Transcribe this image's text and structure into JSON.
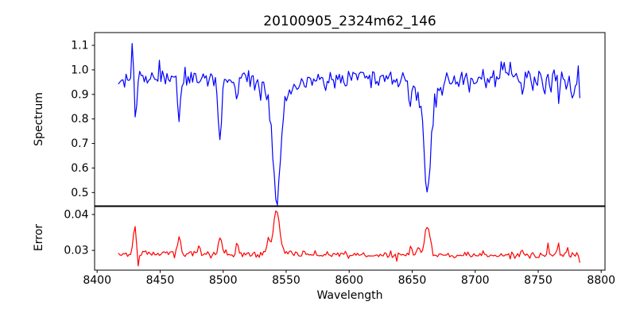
{
  "figure": {
    "background": "#ffffff",
    "axis_color": "#000000"
  },
  "chart_data": {
    "type": "line",
    "title": "20100905_2324m62_146",
    "xlabel": "Wavelength",
    "legend": false,
    "grid": false,
    "xlim": [
      8398,
      8803
    ],
    "x_ticks": [
      8400,
      8450,
      8500,
      8550,
      8600,
      8650,
      8700,
      8750,
      8800
    ],
    "x_tick_labels": [
      "8400",
      "8450",
      "8500",
      "8550",
      "8600",
      "8650",
      "8700",
      "8750",
      "8800"
    ],
    "x_data_start": 8417,
    "x_data_end": 8784,
    "x_step": 1.2,
    "panels": [
      {
        "name": "spectrum",
        "ylabel": "Spectrum",
        "line_color": "#0000ff",
        "ylim": [
          0.446,
          1.152
        ],
        "y_ticks": [
          0.5,
          0.6,
          0.7,
          0.8,
          0.9,
          1.0,
          1.1
        ],
        "y_tick_labels": [
          "0.5",
          "0.6",
          "0.7",
          "0.8",
          "0.9",
          "1.0",
          "1.1"
        ],
        "continuum": 0.965,
        "continuum_wiggle_amp": 0.006,
        "continuum_wiggle_period": 95,
        "noise_sigma": 0.021,
        "noise_seed": 42,
        "rough_zone_start": 8750,
        "rough_zone_factor": 1.45,
        "rough_zone_offset": -0.012,
        "absorption_lines": [
          [
            8430.5,
            0.2,
            1.0
          ],
          [
            8465.0,
            0.155,
            1.0
          ],
          [
            8497.5,
            0.27,
            1.4
          ],
          [
            8511.0,
            0.09,
            0.9
          ],
          [
            8542.5,
            0.37,
            2.8
          ],
          [
            8542.5,
            0.117,
            8.0
          ],
          [
            8581.0,
            0.06,
            0.8
          ],
          [
            8649.0,
            0.08,
            0.9
          ],
          [
            8662.0,
            0.36,
            2.4
          ],
          [
            8662.0,
            0.1,
            7.0
          ],
          [
            8695.0,
            0.07,
            0.9
          ],
          [
            8737.0,
            0.07,
            0.9
          ],
          [
            8766.0,
            0.08,
            0.8
          ],
          [
            8778.0,
            0.07,
            0.8
          ],
          [
            8784.0,
            0.09,
            0.8
          ]
        ],
        "emission_spikes": [
          [
            8428.0,
            0.15,
            0.7
          ],
          [
            8450.0,
            0.07,
            0.5
          ],
          [
            8721.0,
            0.1,
            0.7
          ]
        ]
      },
      {
        "name": "error",
        "ylabel": "Error",
        "line_color": "#ff0000",
        "ylim": [
          0.0245,
          0.0422
        ],
        "y_ticks": [
          0.03,
          0.04
        ],
        "y_tick_labels": [
          "0.03",
          "0.04"
        ],
        "baseline_left": 0.0291,
        "baseline_right": 0.0285,
        "noise_sigma": 0.00045,
        "noise_seed": 7,
        "peaks": [
          [
            8430.0,
            0.0075,
            1.2
          ],
          [
            8465.0,
            0.0055,
            1.0
          ],
          [
            8481.0,
            0.0022,
            0.8
          ],
          [
            8497.5,
            0.005,
            1.3
          ],
          [
            8511.0,
            0.0035,
            0.9
          ],
          [
            8536.0,
            0.003,
            1.2
          ],
          [
            8542.5,
            0.0105,
            2.2
          ],
          [
            8542.5,
            0.0018,
            6.0
          ],
          [
            8649.0,
            0.003,
            0.8
          ],
          [
            8655.0,
            0.002,
            1.5
          ],
          [
            8662.0,
            0.0082,
            2.0
          ],
          [
            8737.0,
            0.0018,
            0.8
          ],
          [
            8758.0,
            0.0035,
            0.6
          ],
          [
            8766.0,
            0.004,
            0.6
          ],
          [
            8773.0,
            0.0032,
            0.6
          ]
        ],
        "dips": [
          [
            8432.5,
            0.0042,
            0.7
          ],
          [
            8783.0,
            0.0022,
            0.8
          ]
        ]
      }
    ]
  }
}
